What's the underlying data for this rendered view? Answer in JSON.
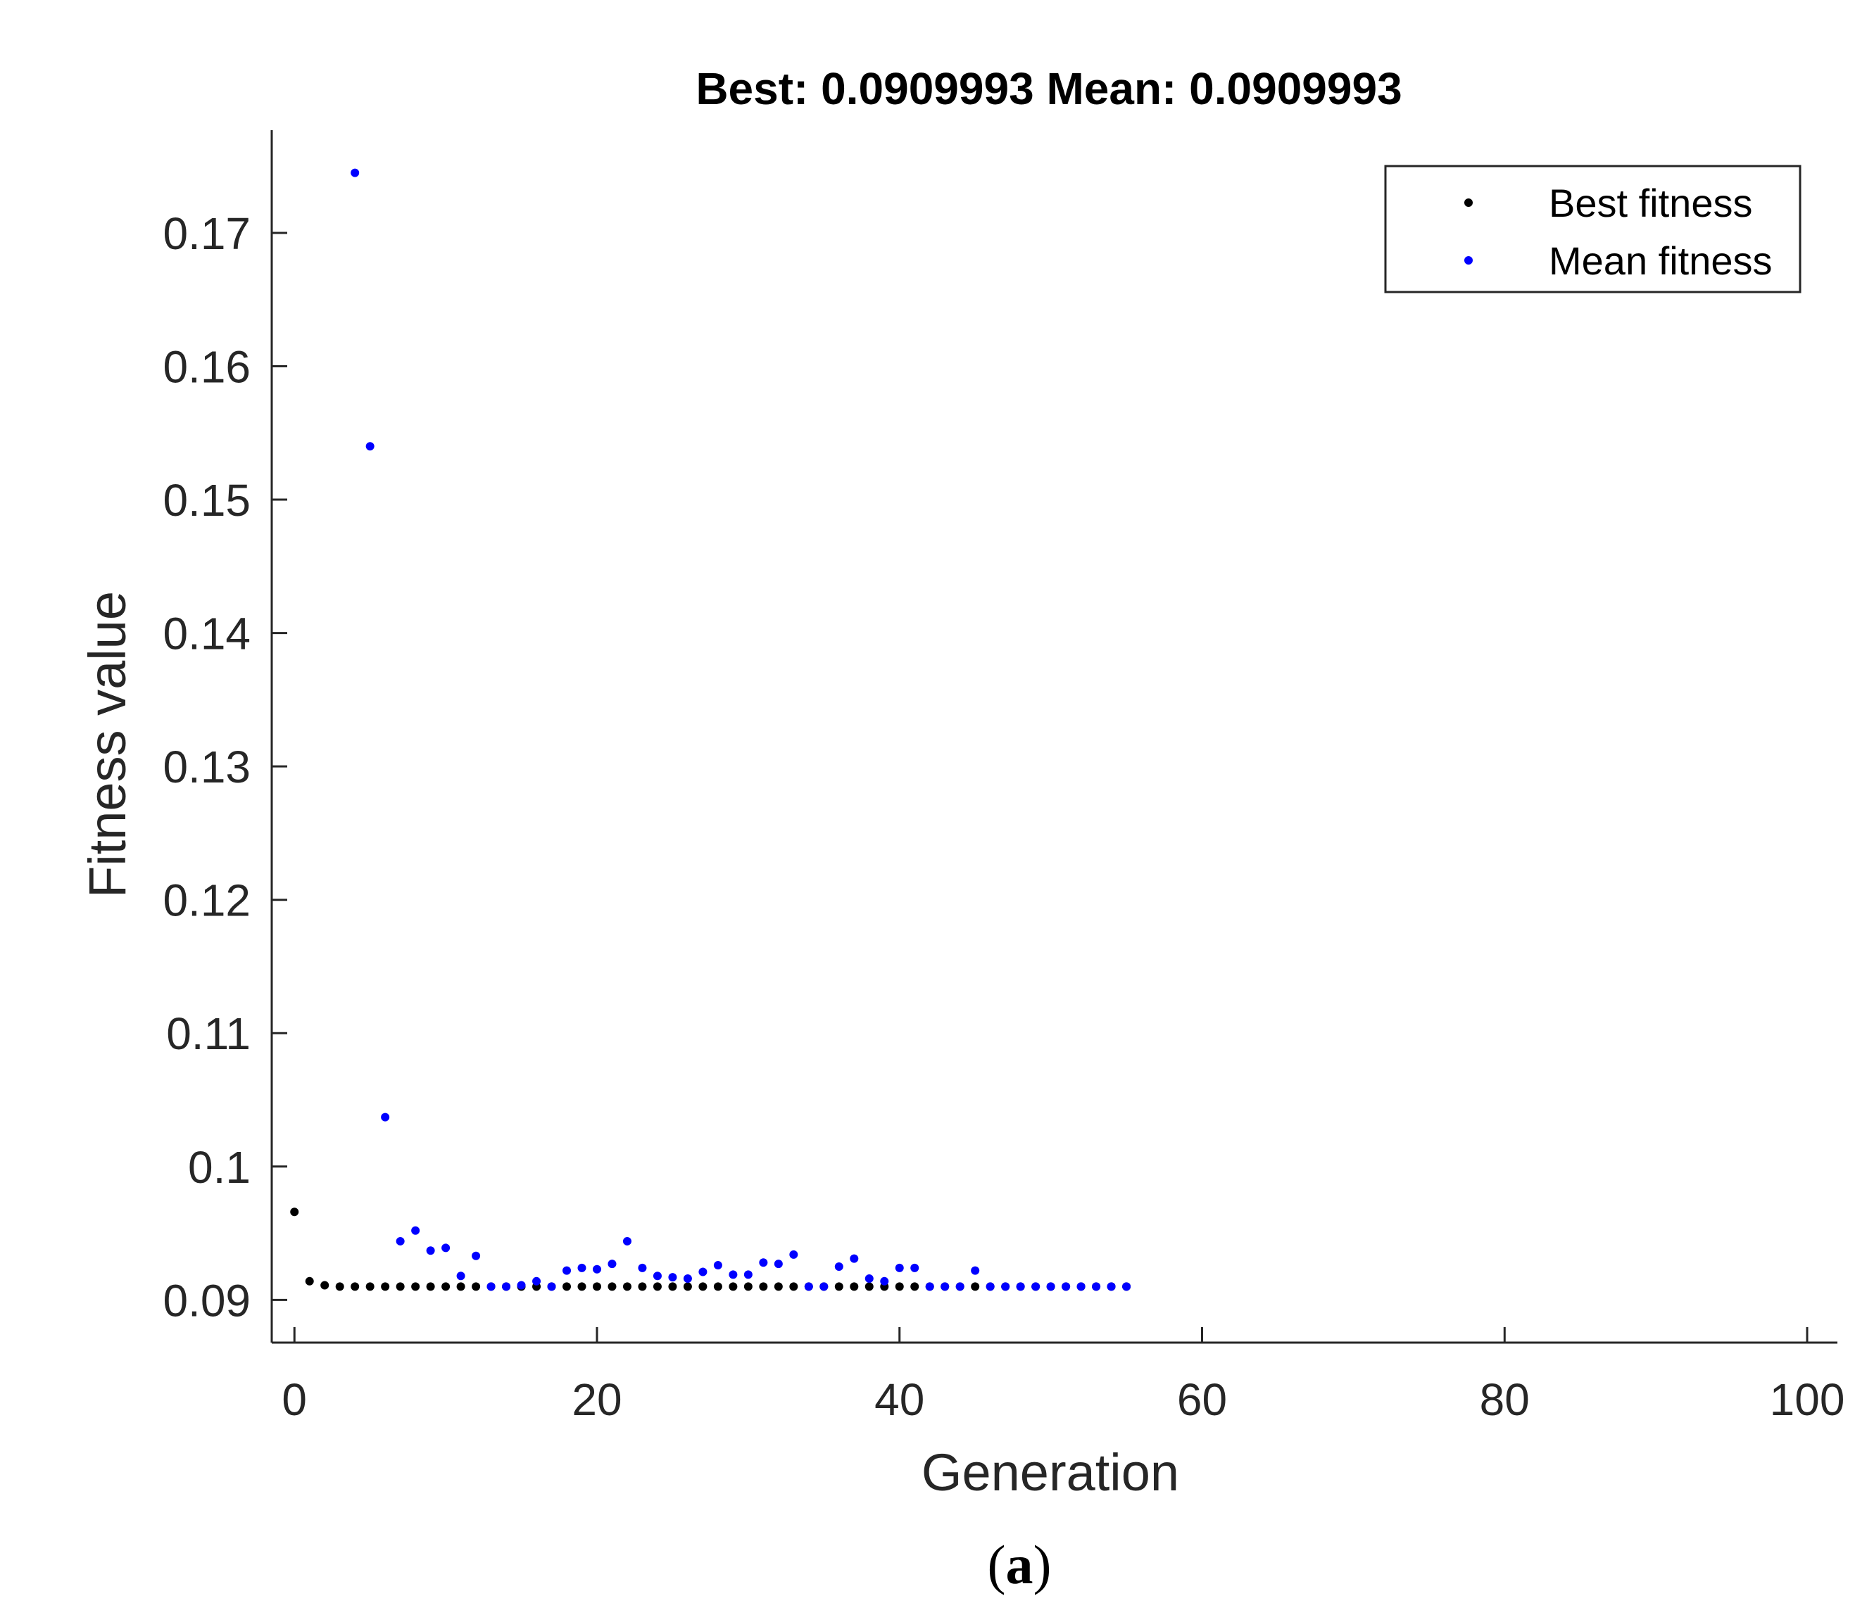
{
  "caption": {
    "open": "(",
    "letter": "a",
    "close": ")"
  },
  "chart_data": {
    "type": "scatter",
    "title": "Best: 0.0909993 Mean: 0.0909993",
    "xlabel": "Generation",
    "ylabel": "Fitness value",
    "xlim": [
      -1.5,
      102
    ],
    "ylim": [
      0.0868,
      0.1777
    ],
    "x_ticks": [
      0,
      20,
      40,
      60,
      80,
      100
    ],
    "x_tick_labels": [
      "0",
      "20",
      "40",
      "60",
      "80",
      "100"
    ],
    "y_ticks": [
      0.09,
      0.1,
      0.11,
      0.12,
      0.13,
      0.14,
      0.15,
      0.16,
      0.17
    ],
    "y_tick_labels": [
      "0.09",
      "0.1",
      "0.11",
      "0.12",
      "0.13",
      "0.14",
      "0.15",
      "0.16",
      "0.17"
    ],
    "grid": false,
    "legend_position": "top-right",
    "colors": {
      "best": "#000000",
      "mean": "#0000ff",
      "axis": "#262626"
    },
    "series": [
      {
        "name": "Best fitness",
        "key": "best",
        "x": [
          0,
          1,
          2,
          3,
          4,
          5,
          6,
          7,
          8,
          9,
          10,
          11,
          12,
          13,
          14,
          15,
          16,
          17,
          18,
          19,
          20,
          21,
          22,
          23,
          24,
          25,
          26,
          27,
          28,
          29,
          30,
          31,
          32,
          33,
          34,
          35,
          36,
          37,
          38,
          39,
          40,
          41,
          42,
          43,
          44,
          45,
          46,
          47,
          48,
          49,
          50,
          51,
          52,
          53,
          54,
          55
        ],
        "y": [
          0.0966,
          0.0914,
          0.0911,
          0.091,
          0.091,
          0.091,
          0.091,
          0.091,
          0.091,
          0.091,
          0.091,
          0.091,
          0.091,
          0.091,
          0.091,
          0.091,
          0.091,
          0.091,
          0.091,
          0.091,
          0.091,
          0.091,
          0.091,
          0.091,
          0.091,
          0.091,
          0.091,
          0.091,
          0.091,
          0.091,
          0.091,
          0.091,
          0.091,
          0.091,
          0.091,
          0.091,
          0.091,
          0.091,
          0.091,
          0.091,
          0.091,
          0.091,
          0.091,
          0.091,
          0.091,
          0.091,
          0.091,
          0.091,
          0.091,
          0.091,
          0.091,
          0.091,
          0.091,
          0.091,
          0.091,
          0.091
        ]
      },
      {
        "name": "Mean fitness",
        "key": "mean",
        "x": [
          4,
          5,
          6,
          7,
          8,
          9,
          10,
          11,
          12,
          13,
          14,
          15,
          16,
          17,
          18,
          19,
          20,
          21,
          22,
          23,
          24,
          25,
          26,
          27,
          28,
          29,
          30,
          31,
          32,
          33,
          34,
          35,
          36,
          37,
          38,
          39,
          40,
          41,
          42,
          43,
          44,
          45,
          46,
          47,
          48,
          49,
          50,
          51,
          52,
          53,
          54,
          55
        ],
        "y": [
          0.1745,
          0.154,
          0.1037,
          0.0944,
          0.0952,
          0.0937,
          0.0939,
          0.0918,
          0.0933,
          0.091,
          0.091,
          0.0911,
          0.0914,
          0.091,
          0.0922,
          0.0924,
          0.0923,
          0.0927,
          0.0944,
          0.0924,
          0.0918,
          0.0917,
          0.0916,
          0.0921,
          0.0926,
          0.0919,
          0.0919,
          0.0928,
          0.0927,
          0.0934,
          0.091,
          0.091,
          0.0925,
          0.0931,
          0.0916,
          0.0914,
          0.0924,
          0.0924,
          0.091,
          0.091,
          0.091,
          0.0922,
          0.091,
          0.091,
          0.091,
          0.091,
          0.091,
          0.091,
          0.091,
          0.091,
          0.091,
          0.091
        ]
      }
    ]
  }
}
